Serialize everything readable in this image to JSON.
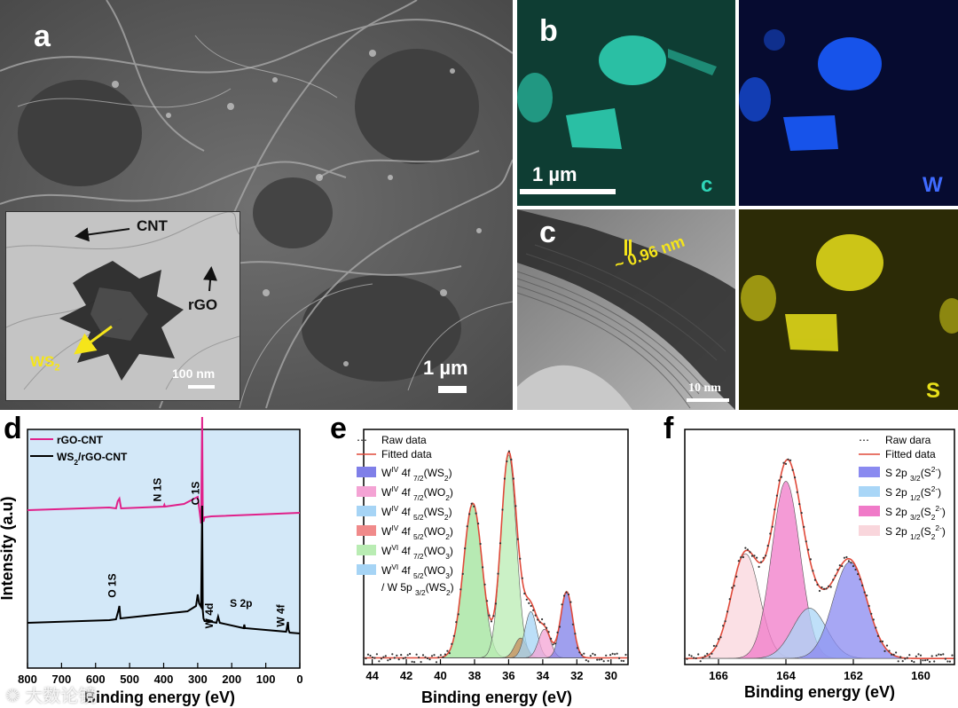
{
  "panels": {
    "a": {
      "letter": "a",
      "scale_bar": "1 µm",
      "inset": {
        "scale_bar": "100 nm",
        "labels": {
          "cnt": "CNT",
          "rgo": "rGO",
          "ws2_main": "WS",
          "ws2_sub": "2"
        }
      }
    },
    "b": {
      "letter": "b",
      "scale_bar": "1 µm",
      "maps": [
        {
          "element": "C",
          "label": "c",
          "color": "#2fd6b8"
        },
        {
          "element": "W",
          "label": "W",
          "color": "#1a5bff"
        },
        {
          "element": "S",
          "label": "S",
          "color": "#e8e01a"
        }
      ]
    },
    "c": {
      "letter": "c",
      "spacing": "~ 0.96 nm",
      "scale_bar": "10 nm"
    },
    "d": {
      "letter": "d"
    },
    "e": {
      "letter": "e"
    },
    "f": {
      "letter": "f"
    }
  },
  "watermark": "大数论镜",
  "chart_data": [
    {
      "id": "d",
      "type": "line",
      "xlabel": "Binding energy (eV)",
      "ylabel": "Intensity (a.u)",
      "xlim": [
        800,
        0
      ],
      "xticks": [
        800,
        700,
        600,
        500,
        400,
        300,
        200,
        100,
        0
      ],
      "legend": {
        "placement": "top-left",
        "entries": [
          {
            "name": "rGO-CNT",
            "color": "#e0208a"
          },
          {
            "name": "WS2/rGO-CNT",
            "name_main": "WS",
            "name_sub": "2",
            "name_tail": "/rGO-CNT",
            "color": "#000000"
          }
        ]
      },
      "background": "#cfe6f7",
      "series": [
        {
          "name": "rGO-CNT",
          "color": "#e0208a",
          "x": [
            800,
            560,
            540,
            535,
            530,
            525,
            400,
            398,
            396,
            340,
            300,
            295,
            290,
            287,
            285,
            283,
            280,
            260,
            0
          ],
          "y": [
            575,
            572,
            573,
            565,
            562,
            573,
            571,
            569,
            571,
            568,
            560,
            575,
            590,
            470,
            583,
            588,
            583,
            582,
            578
          ]
        },
        {
          "name": "WS2/rGO-CNT",
          "color": "#000000",
          "x": [
            800,
            560,
            540,
            533,
            530,
            527,
            330,
            305,
            300,
            296,
            290,
            287,
            285,
            283,
            280,
            270,
            245,
            240,
            235,
            165,
            163,
            161,
            40,
            35,
            33,
            30,
            0
          ],
          "y": [
            702,
            699,
            698,
            688,
            683,
            697,
            689,
            683,
            670,
            680,
            684,
            570,
            688,
            697,
            700,
            700,
            702,
            695,
            702,
            708,
            704,
            708,
            712,
            701,
            710,
            713,
            714
          ]
        }
      ],
      "annotations": [
        "O 1S",
        "N 1S",
        "C 1S",
        "W 4d",
        "S 2p",
        "W 4f"
      ]
    },
    {
      "id": "e",
      "type": "line",
      "xlabel": "Binding energy (eV)",
      "xlim": [
        44.5,
        29
      ],
      "xticks": [
        44,
        42,
        40,
        38,
        36,
        34,
        32,
        30
      ],
      "legend": {
        "placement": "top-left",
        "entries": [
          {
            "name": "Raw data",
            "kind": "dots"
          },
          {
            "name": "Fitted data",
            "kind": "line",
            "color": "#e04a3a"
          },
          {
            "name": "W^IV 4f 7/2(WS2)",
            "color": "#7f7fe8"
          },
          {
            "name": "W^IV 4f 7/2(WO2)",
            "color": "#f4a3d4"
          },
          {
            "name": "W^IV 4f 5/2(WS2)",
            "color": "#a6d4f5"
          },
          {
            "name": "W^IV 4f 5/2(WO2)",
            "color": "#f08a8a"
          },
          {
            "name": "W^VI 4f 7/2(WO3)",
            "color": "#b9ecb3"
          },
          {
            "name": "W^VI 4f 5/2(WO3) / W 5p 3/2(WS2)",
            "color": "#a6d4f5"
          }
        ]
      },
      "peaks": [
        {
          "name": "W^VI 4f 5/2(WO3) / W 5p 3/2(WS2)",
          "center": 38.1,
          "height": 0.7,
          "width": 0.55,
          "color": "#9fe39a"
        },
        {
          "name": "W^VI 4f 7/2(WO3)",
          "center": 36.0,
          "height": 0.92,
          "width": 0.45,
          "color": "#b9ecb3"
        },
        {
          "name": "W^IV 4f 5/2(WO2)",
          "center": 35.3,
          "height": 0.09,
          "width": 0.35,
          "color": "#c58a5a"
        },
        {
          "name": "W^IV 4f 5/2(WS2)",
          "center": 34.7,
          "height": 0.21,
          "width": 0.35,
          "color": "#a6d4f5"
        },
        {
          "name": "W^IV 4f 7/2(WO2)",
          "center": 33.9,
          "height": 0.13,
          "width": 0.35,
          "color": "#f4a3d4"
        },
        {
          "name": "W^IV 4f 7/2(WS2)",
          "center": 32.6,
          "height": 0.3,
          "width": 0.35,
          "color": "#7f7fe8"
        }
      ]
    },
    {
      "id": "f",
      "type": "line",
      "xlabel": "Binding energy (eV)",
      "xlim": [
        167,
        159
      ],
      "xticks": [
        166,
        164,
        162,
        160
      ],
      "legend": {
        "placement": "top-right",
        "entries": [
          {
            "name": "Raw dara",
            "kind": "dots"
          },
          {
            "name": "Fitted data",
            "kind": "line",
            "color": "#e04a3a"
          },
          {
            "name": "S 2p 3/2(S2-)",
            "color": "#8a8af0"
          },
          {
            "name": "S 2p 1/2(S2-)",
            "color": "#a9d6f7"
          },
          {
            "name": "S 2p 3/2(S2 2-)",
            "color": "#f07ac8"
          },
          {
            "name": "S 2p 1/2(S2 2-)",
            "color": "#f9d6dc"
          }
        ]
      },
      "peaks": [
        {
          "name": "S 2p 1/2(S2 2-)",
          "center": 165.2,
          "height": 0.52,
          "width": 0.42,
          "color": "#f9d6dc"
        },
        {
          "name": "S 2p 3/2(S2 2-)",
          "center": 164.0,
          "height": 0.88,
          "width": 0.42,
          "color": "#f07ac8"
        },
        {
          "name": "S 2p 1/2(S2-)",
          "center": 163.3,
          "height": 0.25,
          "width": 0.5,
          "color": "#a9d6f7"
        },
        {
          "name": "S 2p 3/2(S2-)",
          "center": 162.1,
          "height": 0.48,
          "width": 0.5,
          "color": "#8a8af0"
        }
      ]
    }
  ]
}
